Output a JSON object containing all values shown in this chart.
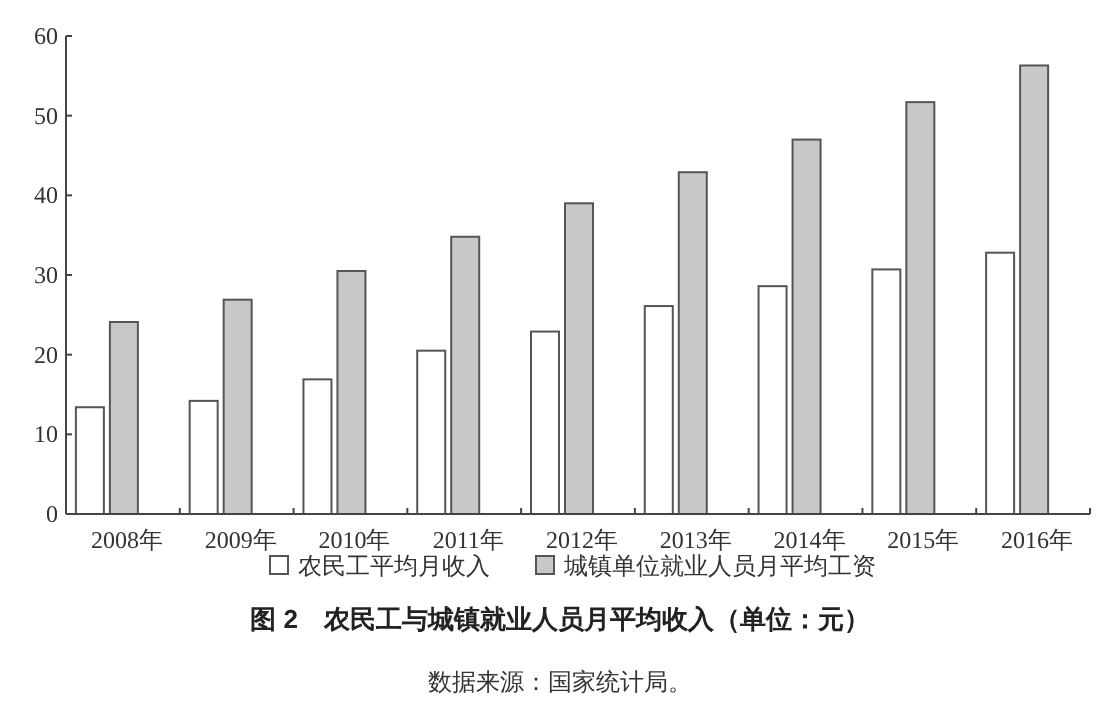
{
  "chart_data": {
    "type": "bar",
    "title": "图 2　农民工与城镇就业人员月平均收入（单位：元）",
    "categories": [
      "2008年",
      "2009年",
      "2010年",
      "2011年",
      "2012年",
      "2013年",
      "2014年",
      "2015年",
      "2016年"
    ],
    "series": [
      {
        "name": "农民工平均月收入",
        "color": "#ffffff",
        "values": [
          13.4,
          14.2,
          16.9,
          20.5,
          22.9,
          26.1,
          28.6,
          30.7,
          32.8
        ]
      },
      {
        "name": "城镇单位就业人员月平均工资",
        "color": "#c8c8c8",
        "values": [
          24.1,
          26.9,
          30.5,
          34.8,
          39.0,
          42.9,
          47.0,
          51.7,
          56.3
        ]
      }
    ],
    "ylim": [
      0,
      60
    ],
    "yticks": [
      0,
      10,
      20,
      30,
      40,
      50,
      60
    ],
    "legend": "bottom",
    "annotations": [
      "数据来源：国家统计局。"
    ]
  }
}
